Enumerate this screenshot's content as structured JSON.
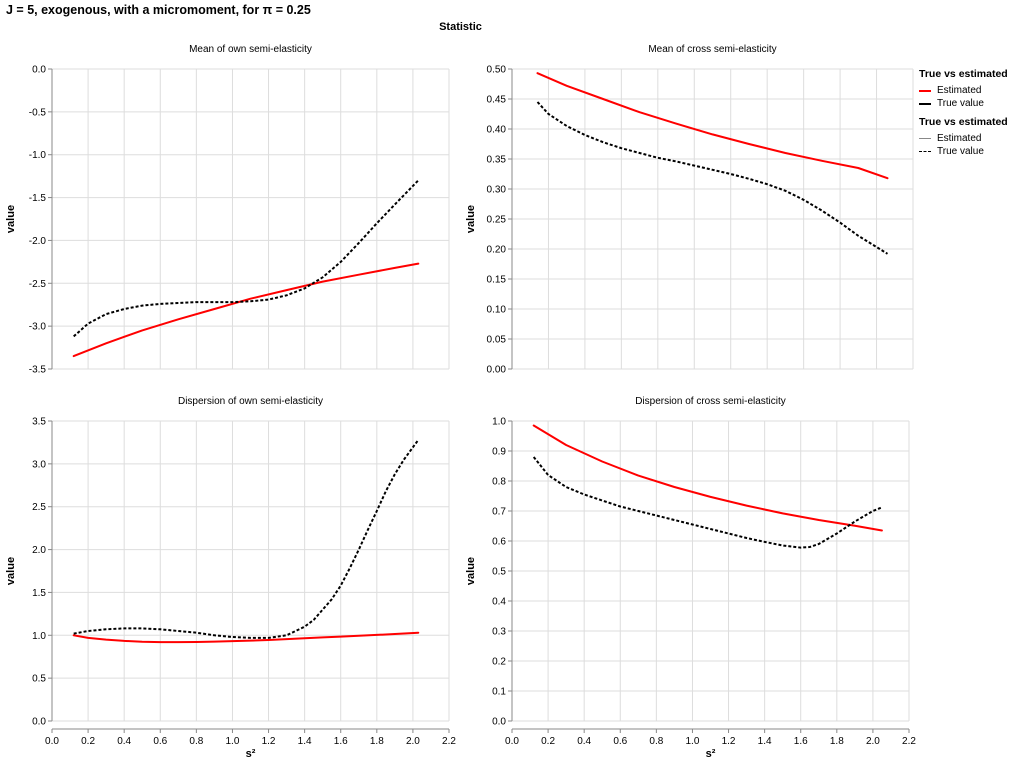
{
  "title": "J = 5, exogenous, with a micromoment,  for π = 0.25",
  "facet_header": "Statistic",
  "legends": [
    {
      "title": "True vs estimated",
      "items": [
        {
          "label": "Estimated",
          "color": "#ff0000",
          "style": "solid"
        },
        {
          "label": "True value",
          "color": "#000000",
          "style": "solid"
        }
      ]
    },
    {
      "title": "True vs estimated",
      "items": [
        {
          "label": "Estimated",
          "color": "#888888",
          "style": "solid"
        },
        {
          "label": "True value",
          "color": "#000000",
          "style": "dashed"
        }
      ]
    }
  ],
  "chart_data": [
    {
      "type": "line",
      "title": "Mean of own semi-elasticity",
      "xlabel": "",
      "ylabel": "value",
      "xlim": [
        0,
        2.2
      ],
      "ylim": [
        -3.5,
        0
      ],
      "xticks": [],
      "yticks": [
        "-3.5",
        "-3.0",
        "-2.5",
        "-2.0",
        "-1.5",
        "-1.0",
        "-0.5",
        "0.0"
      ],
      "grid": true,
      "series": [
        {
          "name": "Estimated",
          "color": "#ff0000",
          "dash": false,
          "x": [
            0.12,
            0.3,
            0.5,
            0.7,
            0.9,
            1.1,
            1.3,
            1.5,
            1.7,
            1.9,
            2.03
          ],
          "y": [
            -3.35,
            -3.2,
            -3.05,
            -2.92,
            -2.8,
            -2.68,
            -2.58,
            -2.48,
            -2.4,
            -2.32,
            -2.27
          ]
        },
        {
          "name": "True value",
          "color": "#000000",
          "dash": true,
          "x": [
            0.12,
            0.2,
            0.3,
            0.4,
            0.5,
            0.6,
            0.7,
            0.8,
            0.9,
            1.0,
            1.1,
            1.2,
            1.3,
            1.4,
            1.5,
            1.6,
            1.7,
            1.8,
            1.9,
            2.03
          ],
          "y": [
            -3.12,
            -2.97,
            -2.86,
            -2.8,
            -2.76,
            -2.74,
            -2.73,
            -2.72,
            -2.72,
            -2.72,
            -2.71,
            -2.69,
            -2.64,
            -2.56,
            -2.43,
            -2.25,
            -2.03,
            -1.8,
            -1.58,
            -1.3
          ]
        }
      ]
    },
    {
      "type": "line",
      "title": "Mean of cross semi-elasticity",
      "xlabel": "",
      "ylabel": "value",
      "xlim": [
        0,
        2.2
      ],
      "ylim": [
        0,
        0.5
      ],
      "xticks": [],
      "yticks": [
        "0.00",
        "0.05",
        "0.10",
        "0.15",
        "0.20",
        "0.25",
        "0.30",
        "0.35",
        "0.40",
        "0.45",
        "0.50"
      ],
      "grid": true,
      "series": [
        {
          "name": "Estimated",
          "color": "#ff0000",
          "dash": false,
          "x": [
            0.14,
            0.3,
            0.5,
            0.7,
            0.9,
            1.1,
            1.3,
            1.5,
            1.7,
            1.9,
            2.06
          ],
          "y": [
            0.493,
            0.472,
            0.45,
            0.428,
            0.409,
            0.391,
            0.375,
            0.36,
            0.347,
            0.335,
            0.318
          ]
        },
        {
          "name": "True value",
          "color": "#000000",
          "dash": true,
          "x": [
            0.14,
            0.2,
            0.3,
            0.4,
            0.5,
            0.6,
            0.7,
            0.8,
            0.9,
            1.0,
            1.1,
            1.2,
            1.3,
            1.4,
            1.5,
            1.6,
            1.7,
            1.8,
            1.9,
            2.06
          ],
          "y": [
            0.445,
            0.425,
            0.405,
            0.39,
            0.378,
            0.368,
            0.36,
            0.352,
            0.346,
            0.339,
            0.332,
            0.325,
            0.317,
            0.308,
            0.297,
            0.282,
            0.264,
            0.244,
            0.222,
            0.192
          ]
        }
      ]
    },
    {
      "type": "line",
      "title": "Dispersion of own semi-elasticity",
      "xlabel": "s²",
      "ylabel": "value",
      "xlim": [
        0,
        2.2
      ],
      "ylim": [
        0,
        3.5
      ],
      "xticks": [
        "0.0",
        "0.2",
        "0.4",
        "0.6",
        "0.8",
        "1.0",
        "1.2",
        "1.4",
        "1.6",
        "1.8",
        "2.0",
        "2.2"
      ],
      "yticks": [
        "0.0",
        "0.5",
        "1.0",
        "1.5",
        "2.0",
        "2.5",
        "3.0",
        "3.5"
      ],
      "grid": true,
      "series": [
        {
          "name": "Estimated",
          "color": "#ff0000",
          "dash": false,
          "x": [
            0.12,
            0.2,
            0.3,
            0.4,
            0.5,
            0.6,
            0.7,
            0.8,
            0.9,
            1.0,
            1.1,
            1.2,
            1.3,
            1.4,
            1.5,
            1.6,
            1.7,
            1.8,
            1.9,
            2.03
          ],
          "y": [
            1.0,
            0.97,
            0.95,
            0.935,
            0.925,
            0.92,
            0.92,
            0.922,
            0.926,
            0.932,
            0.938,
            0.945,
            0.955,
            0.965,
            0.975,
            0.985,
            0.995,
            1.005,
            1.015,
            1.03
          ]
        },
        {
          "name": "True value",
          "color": "#000000",
          "dash": true,
          "x": [
            0.12,
            0.2,
            0.3,
            0.4,
            0.5,
            0.6,
            0.7,
            0.8,
            0.9,
            1.0,
            1.1,
            1.2,
            1.3,
            1.4,
            1.45,
            1.5,
            1.55,
            1.6,
            1.65,
            1.7,
            1.75,
            1.8,
            1.85,
            1.9,
            1.95,
            2.03
          ],
          "y": [
            1.02,
            1.05,
            1.07,
            1.08,
            1.08,
            1.07,
            1.05,
            1.03,
            1.0,
            0.98,
            0.97,
            0.97,
            1.0,
            1.1,
            1.18,
            1.3,
            1.42,
            1.58,
            1.78,
            2.0,
            2.23,
            2.45,
            2.68,
            2.88,
            3.05,
            3.28
          ]
        }
      ]
    },
    {
      "type": "line",
      "title": "Dispersion of cross semi-elasticity",
      "xlabel": "s²",
      "ylabel": "value",
      "xlim": [
        0,
        2.2
      ],
      "ylim": [
        0,
        1.0
      ],
      "xticks": [
        "0.0",
        "0.2",
        "0.4",
        "0.6",
        "0.8",
        "1.0",
        "1.2",
        "1.4",
        "1.6",
        "1.8",
        "2.0",
        "2.2"
      ],
      "yticks": [
        "0.0",
        "0.1",
        "0.2",
        "0.3",
        "0.4",
        "0.5",
        "0.6",
        "0.7",
        "0.8",
        "0.9",
        "1.0"
      ],
      "grid": true,
      "series": [
        {
          "name": "Estimated",
          "color": "#ff0000",
          "dash": false,
          "x": [
            0.12,
            0.3,
            0.5,
            0.7,
            0.9,
            1.1,
            1.3,
            1.5,
            1.7,
            1.9,
            2.05
          ],
          "y": [
            0.985,
            0.92,
            0.865,
            0.818,
            0.78,
            0.747,
            0.718,
            0.692,
            0.67,
            0.651,
            0.635
          ]
        },
        {
          "name": "True value",
          "color": "#000000",
          "dash": true,
          "x": [
            0.12,
            0.2,
            0.3,
            0.4,
            0.5,
            0.6,
            0.7,
            0.8,
            0.9,
            1.0,
            1.1,
            1.2,
            1.3,
            1.4,
            1.5,
            1.6,
            1.65,
            1.7,
            1.8,
            1.9,
            2.0,
            2.05
          ],
          "y": [
            0.88,
            0.82,
            0.78,
            0.755,
            0.735,
            0.715,
            0.7,
            0.685,
            0.67,
            0.655,
            0.64,
            0.625,
            0.61,
            0.597,
            0.585,
            0.578,
            0.58,
            0.59,
            0.625,
            0.665,
            0.7,
            0.712
          ]
        }
      ]
    }
  ]
}
